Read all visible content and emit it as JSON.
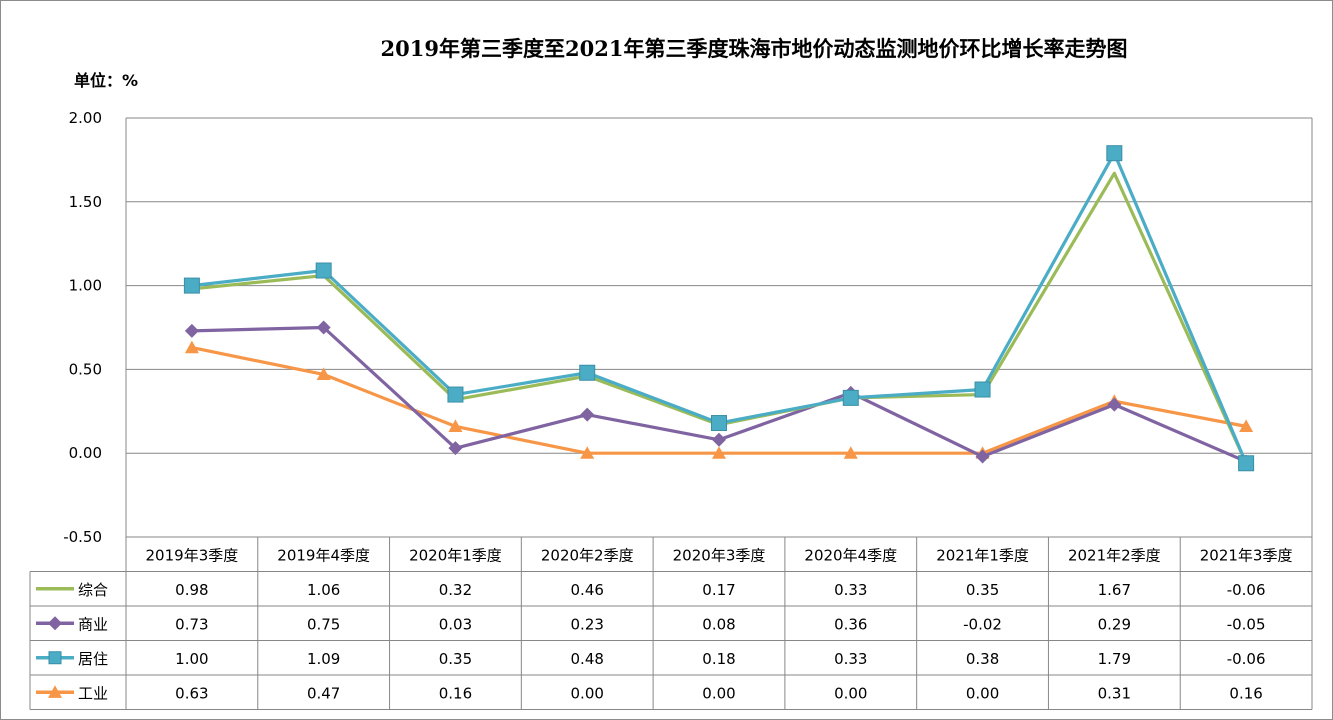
{
  "chart_data": {
    "type": "line",
    "title": "2019年第三季度至2021年第三季度珠海市地价动态监测地价环比增长率走势图",
    "unit_label": "单位：%",
    "categories": [
      "2019年3季度",
      "2019年4季度",
      "2020年1季度",
      "2020年2季度",
      "2020年3季度",
      "2020年4季度",
      "2021年1季度",
      "2021年2季度",
      "2021年3季度"
    ],
    "ylim": [
      -0.5,
      2.0
    ],
    "yticks": [
      "2.00",
      "1.50",
      "1.00",
      "0.50",
      "0.00",
      "-0.50"
    ],
    "ytick_values": [
      2.0,
      1.5,
      1.0,
      0.5,
      0.0,
      -0.5
    ],
    "grid": true,
    "legend_placement": "data-table-left",
    "series": [
      {
        "name": "综合",
        "color": "#9bbb59",
        "marker": "dash",
        "values": [
          0.98,
          1.06,
          0.32,
          0.46,
          0.17,
          0.33,
          0.35,
          1.67,
          -0.06
        ],
        "labels": [
          "0.98",
          "1.06",
          "0.32",
          "0.46",
          "0.17",
          "0.33",
          "0.35",
          "1.67",
          "-0.06"
        ]
      },
      {
        "name": "商业",
        "color": "#8064a2",
        "marker": "diamond",
        "values": [
          0.73,
          0.75,
          0.03,
          0.23,
          0.08,
          0.36,
          -0.02,
          0.29,
          -0.05
        ],
        "labels": [
          "0.73",
          "0.75",
          "0.03",
          "0.23",
          "0.08",
          "0.36",
          "-0.02",
          "0.29",
          "-0.05"
        ]
      },
      {
        "name": "居住",
        "color": "#4bacc6",
        "marker": "square",
        "values": [
          1.0,
          1.09,
          0.35,
          0.48,
          0.18,
          0.33,
          0.38,
          1.79,
          -0.06
        ],
        "labels": [
          "1.00",
          "1.09",
          "0.35",
          "0.48",
          "0.18",
          "0.33",
          "0.38",
          "1.79",
          "-0.06"
        ]
      },
      {
        "name": "工业",
        "color": "#f79646",
        "marker": "triangle",
        "values": [
          0.63,
          0.47,
          0.16,
          0.0,
          0.0,
          0.0,
          0.0,
          0.31,
          0.16
        ],
        "labels": [
          "0.63",
          "0.47",
          "0.16",
          "0.00",
          "0.00",
          "0.00",
          "0.00",
          "0.31",
          "0.16"
        ]
      }
    ]
  }
}
